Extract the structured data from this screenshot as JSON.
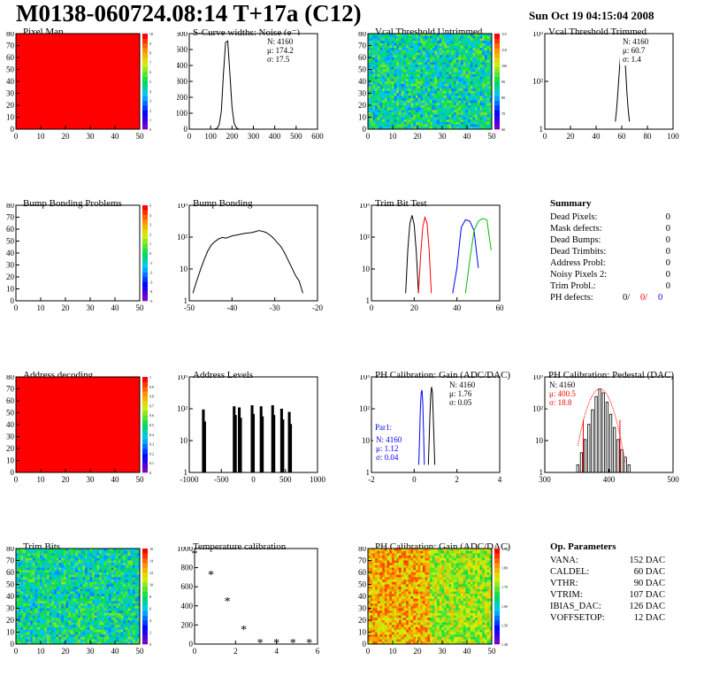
{
  "title": "M0138-060724.08:14 T+17a (C12)",
  "date": "Sun Oct 19 04:15:04 2008",
  "colors": {
    "red": "#ff0000",
    "blue": "#0000ff",
    "green": "#00bb00",
    "black": "#000000"
  },
  "chart_data": [
    {
      "type": "heatmap",
      "title": "Pixel Map",
      "xlim": [
        0,
        52
      ],
      "ylim": [
        0,
        80
      ],
      "xticks": [
        "0",
        "10",
        "20",
        "30",
        "40",
        "50"
      ],
      "yticks": [
        "0",
        "10",
        "20",
        "30",
        "40",
        "50",
        "60",
        "70",
        "80"
      ],
      "colorbar_ticks": [
        "0",
        "1",
        "2",
        "3",
        "4",
        "5",
        "6",
        "7",
        "8",
        "9",
        "10"
      ],
      "fill": "uniform-max"
    },
    {
      "type": "line",
      "title": "S-Curve widths: Noise (e⁻)",
      "xlim": [
        0,
        600
      ],
      "ylim": [
        0,
        650
      ],
      "xticks": [
        "0",
        "100",
        "200",
        "300",
        "400",
        "500",
        "600"
      ],
      "yticks": [
        "0",
        "100",
        "200",
        "300",
        "400",
        "500",
        "600"
      ],
      "stats": [
        "N: 4160",
        "μ: 174.2",
        "σ: 17.5"
      ],
      "x": [
        120,
        130,
        140,
        150,
        160,
        170,
        180,
        190,
        200,
        210,
        220,
        230
      ],
      "y": [
        2,
        5,
        30,
        120,
        380,
        590,
        600,
        380,
        150,
        40,
        10,
        2
      ]
    },
    {
      "type": "heatmap",
      "title": "Vcal Threshold Untrimmed",
      "xlim": [
        0,
        52
      ],
      "ylim": [
        0,
        80
      ],
      "xticks": [
        "0",
        "10",
        "20",
        "30",
        "40",
        "50"
      ],
      "yticks": [
        "0",
        "10",
        "20",
        "30",
        "40",
        "50",
        "60",
        "70",
        "80"
      ],
      "colorbar_ticks": [
        "60",
        "70",
        "80",
        "90",
        "100",
        "110",
        "115"
      ],
      "fill": "random-mid"
    },
    {
      "type": "line",
      "title": "Vcal Threshold Trimmed",
      "xlim": [
        0,
        100
      ],
      "ylog": true,
      "xticks": [
        "0",
        "20",
        "40",
        "60",
        "80",
        "100"
      ],
      "yticks": [
        "1",
        "10²",
        "10³"
      ],
      "stats": [
        "N: 4160",
        "μ: 60.7",
        "σ: 1.4"
      ],
      "x": [
        55,
        56,
        57,
        58,
        59,
        60,
        61,
        62,
        63,
        64,
        65,
        66
      ],
      "y": [
        1,
        3,
        15,
        80,
        400,
        1300,
        1500,
        700,
        120,
        15,
        3,
        1
      ]
    },
    {
      "type": "heatmap",
      "title": "Bump Bonding Problems",
      "xlim": [
        0,
        52
      ],
      "ylim": [
        0,
        80
      ],
      "xticks": [
        "0",
        "10",
        "20",
        "30",
        "40",
        "50"
      ],
      "yticks": [
        "0",
        "10",
        "20",
        "30",
        "40",
        "50",
        "60",
        "70",
        "80"
      ],
      "colorbar_ticks": [
        "-5",
        "-4",
        "-3",
        "-2",
        "-1",
        "0",
        "1",
        "2",
        "3",
        "4",
        "5"
      ],
      "fill": "empty"
    },
    {
      "type": "line",
      "title": "Bump Bonding",
      "xlim": [
        -50,
        -15
      ],
      "ylog": true,
      "xticks": [
        "-50",
        "-40",
        "-30",
        "-20"
      ],
      "yticks": [
        "1",
        "10",
        "10²",
        "10³"
      ],
      "x": [
        -49,
        -48,
        -47,
        -46,
        -45,
        -44,
        -43,
        -42,
        -41,
        -40,
        -39,
        -38,
        -37,
        -36,
        -35,
        -34,
        -33,
        -32,
        -31,
        -30,
        -29,
        -28,
        -27,
        -26,
        -25,
        -24,
        -23,
        -22,
        -21,
        -20,
        -19
      ],
      "y": [
        1,
        3,
        8,
        20,
        45,
        80,
        110,
        140,
        160,
        150,
        170,
        190,
        200,
        215,
        230,
        240,
        250,
        270,
        300,
        280,
        250,
        200,
        150,
        100,
        70,
        40,
        20,
        10,
        5,
        3,
        1
      ]
    },
    {
      "type": "line",
      "title": "Trim Bit Test",
      "xlim": [
        0,
        60
      ],
      "ylog": true,
      "xticks": [
        "0",
        "20",
        "40",
        "60"
      ],
      "yticks": [
        "1",
        "10",
        "10²",
        "10³"
      ],
      "series": [
        {
          "color": "black",
          "x": [
            16,
            17,
            18,
            19,
            20,
            21,
            22
          ],
          "y": [
            1,
            50,
            600,
            1200,
            500,
            40,
            1
          ]
        },
        {
          "color": "red",
          "x": [
            22,
            23,
            24,
            25,
            26,
            27,
            28
          ],
          "y": [
            1,
            30,
            400,
            1000,
            600,
            50,
            1
          ]
        },
        {
          "color": "blue",
          "x": [
            38,
            40,
            42,
            44,
            46,
            48,
            50
          ],
          "y": [
            1,
            10,
            400,
            800,
            700,
            300,
            10
          ]
        },
        {
          "color": "green",
          "x": [
            44,
            46,
            48,
            50,
            52,
            54,
            56
          ],
          "y": [
            1,
            20,
            300,
            700,
            900,
            800,
            50
          ]
        }
      ]
    },
    {
      "type": "table",
      "title": "Summary",
      "rows": [
        {
          "label": "Dead Pixels:",
          "value": "0"
        },
        {
          "label": "Mask defects:",
          "value": "0"
        },
        {
          "label": "Dead Bumps:",
          "value": "0"
        },
        {
          "label": "Dead Trimbits:",
          "value": "0"
        },
        {
          "label": "Address Probl:",
          "value": "0"
        },
        {
          "label": "Noisy Pixels 2:",
          "value": "0"
        },
        {
          "label": "Trim Probl.:",
          "value": "0"
        }
      ],
      "ph_defects": {
        "label": "PH defects:",
        "values": [
          "0/",
          "0/",
          "0"
        ]
      }
    },
    {
      "type": "heatmap",
      "title": "Address decoding",
      "xlim": [
        0,
        52
      ],
      "ylim": [
        0,
        80
      ],
      "xticks": [
        "0",
        "10",
        "20",
        "30",
        "40",
        "50"
      ],
      "yticks": [
        "0",
        "10",
        "20",
        "30",
        "40",
        "50",
        "60",
        "70",
        "80"
      ],
      "colorbar_ticks": [
        "0",
        "0.1",
        "0.2",
        "0.3",
        "0.4",
        "0.5",
        "0.6",
        "0.7",
        "0.8",
        "0.9",
        "1"
      ],
      "fill": "uniform-max"
    },
    {
      "type": "bar",
      "title": "Address Levels",
      "xlim": [
        -1000,
        1000
      ],
      "ylog": true,
      "xticks": [
        "-1000",
        "-500",
        "0",
        "500",
        "1000"
      ],
      "yticks": [
        "1",
        "10",
        "10²",
        "10³"
      ],
      "x": [
        -780,
        -760,
        -300,
        -280,
        -220,
        -200,
        -20,
        0,
        120,
        140,
        300,
        320,
        440,
        460,
        560,
        580
      ],
      "y": [
        150,
        50,
        200,
        90,
        180,
        70,
        220,
        100,
        200,
        80,
        220,
        90,
        160,
        60,
        120,
        40
      ]
    },
    {
      "type": "line",
      "title": "PH Calibration: Gain (ADC/DAC)",
      "xlim": [
        -2,
        6
      ],
      "ylog": true,
      "xticks": [
        "-2",
        "0",
        "2",
        "4"
      ],
      "yticks": [
        "1",
        "10",
        "10²",
        "10³"
      ],
      "stats": [
        "N: 4160",
        "μ: 1.76",
        "σ: 0.05"
      ],
      "par1": {
        "label": "Par1:",
        "stats": [
          "N: 4160",
          "μ: 1.12",
          "σ: 0.04"
        ]
      },
      "series": [
        {
          "color": "black",
          "x": [
            1.55,
            1.6,
            1.65,
            1.7,
            1.75,
            1.8,
            1.85,
            1.9,
            1.95
          ],
          "y": [
            1,
            10,
            100,
            600,
            1200,
            800,
            100,
            10,
            1
          ]
        },
        {
          "color": "blue",
          "x": [
            0.95,
            1.0,
            1.05,
            1.1,
            1.15,
            1.2,
            1.25,
            1.3
          ],
          "y": [
            1,
            10,
            150,
            700,
            900,
            300,
            20,
            1
          ]
        }
      ]
    },
    {
      "type": "bar",
      "title": "PH Calibration: Pedestal (DAC)",
      "xlim": [
        250,
        600
      ],
      "ylog": true,
      "xticks": [
        "300",
        "400",
        "500"
      ],
      "yticks": [
        "1",
        "10",
        "10²",
        "10³"
      ],
      "stats": [
        "N: 4160"
      ],
      "fit_stats": [
        "μ: 400.5",
        "σ: 18.8"
      ],
      "x": [
        340,
        350,
        360,
        370,
        380,
        390,
        400,
        410,
        420,
        430,
        440,
        450,
        460,
        470,
        480
      ],
      "y": [
        1,
        3,
        10,
        40,
        150,
        500,
        1000,
        700,
        300,
        100,
        30,
        10,
        4,
        2,
        1
      ],
      "cut_lines": [
        355,
        455
      ]
    },
    {
      "type": "heatmap",
      "title": "Trim Bits",
      "xlim": [
        0,
        52
      ],
      "ylim": [
        0,
        80
      ],
      "xticks": [
        "0",
        "10",
        "20",
        "30",
        "40",
        "50"
      ],
      "yticks": [
        "0",
        "10",
        "20",
        "30",
        "40",
        "50",
        "60",
        "70",
        "80"
      ],
      "colorbar_ticks": [
        "0",
        "2",
        "4",
        "6",
        "8",
        "10",
        "12",
        "14",
        "16"
      ],
      "fill": "random-mid"
    },
    {
      "type": "scatter",
      "title": "Temperature calibration",
      "xlim": [
        0,
        7.5
      ],
      "ylim": [
        -100,
        1050
      ],
      "xticks": [
        "0",
        "2",
        "4",
        "6"
      ],
      "yticks": [
        "0",
        "200",
        "400",
        "600",
        "800",
        "1000"
      ],
      "x": [
        0,
        1,
        2,
        3,
        4,
        5,
        6,
        7
      ],
      "y": [
        990,
        740,
        420,
        80,
        -80,
        -80,
        -80,
        -80
      ]
    },
    {
      "type": "heatmap",
      "title": "PH Calibration: Gain (ADC/DAC)",
      "xlim": [
        0,
        52
      ],
      "ylim": [
        0,
        80
      ],
      "xticks": [
        "0",
        "10",
        "20",
        "30",
        "40",
        "50"
      ],
      "yticks": [
        "0",
        "10",
        "20",
        "30",
        "40",
        "50",
        "60",
        "70",
        "80"
      ],
      "colorbar_ticks": [
        "1.40",
        "1.50",
        "1.60",
        "1.70",
        "1.80",
        "1.90"
      ],
      "fill": "gain-map"
    },
    {
      "type": "table",
      "title": "Op. Parameters",
      "rows": [
        {
          "label": "VANA:",
          "value": "152 DAC"
        },
        {
          "label": "CALDEL:",
          "value": "60 DAC"
        },
        {
          "label": "VTHR:",
          "value": "90 DAC"
        },
        {
          "label": "VTRIM:",
          "value": "107 DAC"
        },
        {
          "label": "IBIAS_DAC:",
          "value": "126 DAC"
        },
        {
          "label": "VOFFSETOP:",
          "value": "12 DAC"
        }
      ]
    }
  ]
}
